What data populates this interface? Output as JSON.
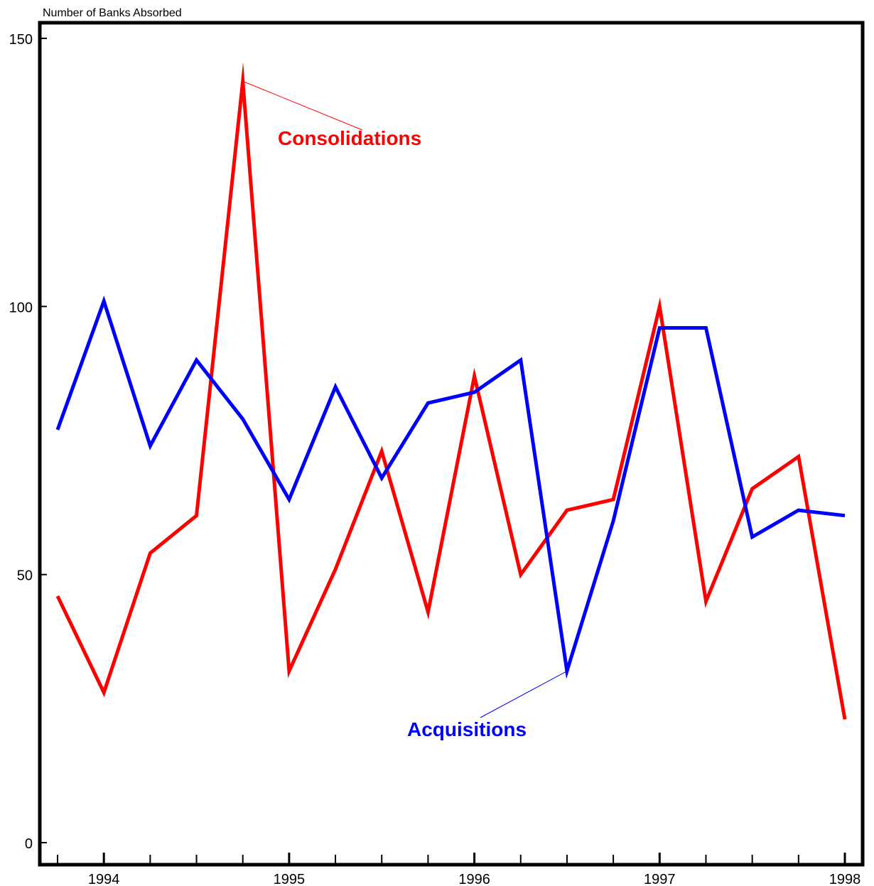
{
  "chart_data": {
    "type": "line",
    "title": "",
    "ylabel": "Number of Banks Absorbed",
    "xlabel": "",
    "ylim": [
      0,
      150
    ],
    "xlim": [
      1993.75,
      1998.0
    ],
    "yticks": [
      0,
      50,
      100,
      150
    ],
    "xticks": [
      1994,
      1995,
      1996,
      1997,
      1998
    ],
    "grid": false,
    "x": [
      1993.75,
      1994.0,
      1994.25,
      1994.5,
      1994.75,
      1995.0,
      1995.25,
      1995.5,
      1995.75,
      1996.0,
      1996.25,
      1996.5,
      1996.75,
      1997.0,
      1997.25,
      1997.5,
      1997.75,
      1998.0
    ],
    "series": [
      {
        "name": "Consolidations",
        "color": "#ff0000",
        "values": [
          46,
          28,
          54,
          61,
          142,
          32,
          51,
          73,
          43,
          87,
          50,
          62,
          64,
          100,
          45,
          66,
          72,
          23
        ]
      },
      {
        "name": "Acquisitions",
        "color": "#0000ff",
        "values": [
          77,
          101,
          74,
          90,
          79,
          64,
          85,
          68,
          82,
          84,
          90,
          32,
          60,
          96,
          96,
          57,
          62,
          61
        ]
      }
    ],
    "annotations": [
      {
        "series": "Consolidations",
        "text": "Consolidations",
        "point_index": 4
      },
      {
        "series": "Acquisitions",
        "text": "Acquisitions",
        "point_index": 11
      }
    ]
  }
}
